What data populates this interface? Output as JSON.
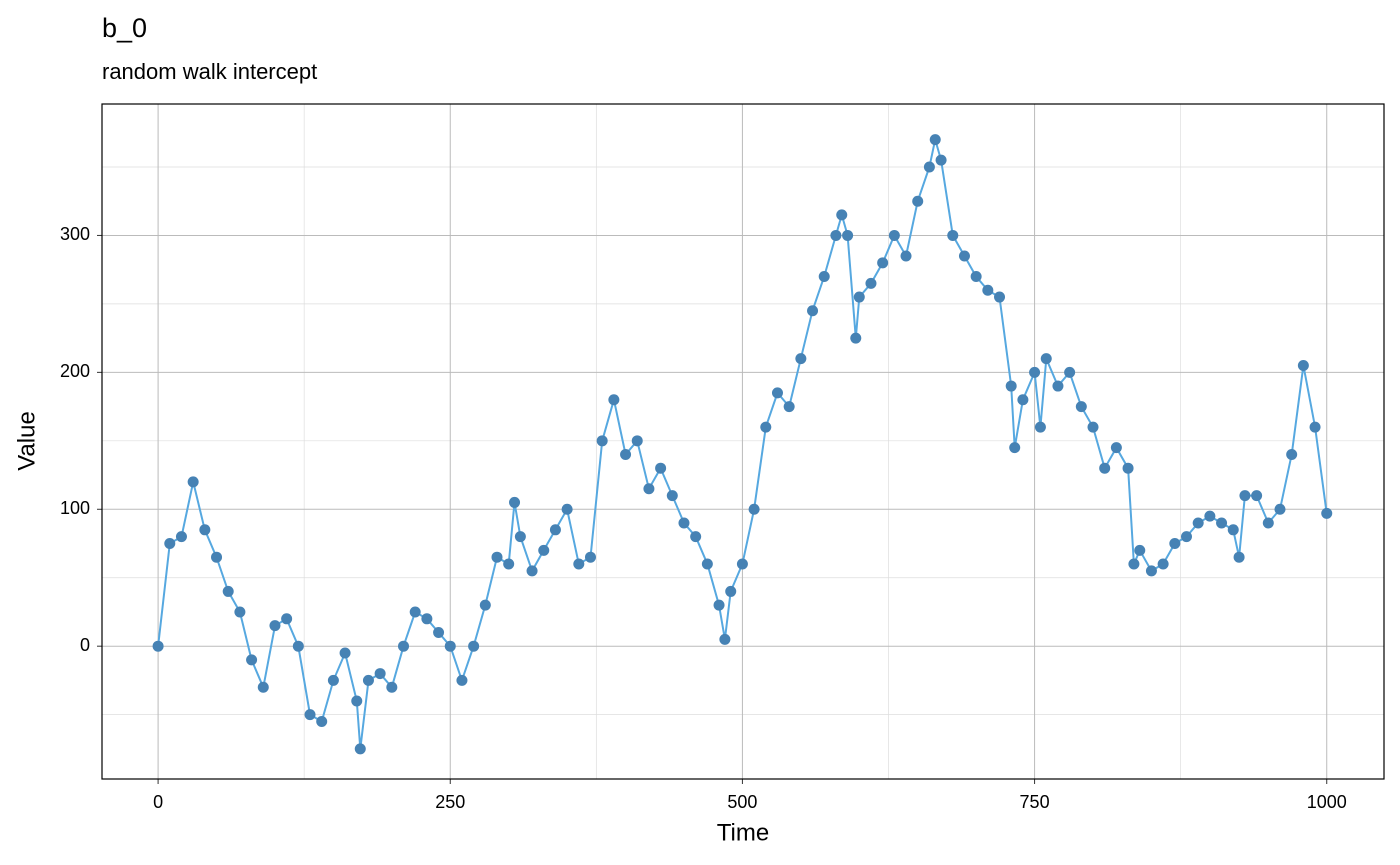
{
  "chart_data": {
    "type": "line",
    "title": "b_0",
    "subtitle": "random walk intercept",
    "x_label": "Time",
    "y_label": "Value",
    "x": [
      0,
      10,
      20,
      30,
      40,
      50,
      60,
      70,
      80,
      90,
      100,
      110,
      120,
      130,
      140,
      150,
      160,
      170,
      173,
      180,
      190,
      200,
      210,
      220,
      230,
      240,
      250,
      260,
      270,
      280,
      290,
      300,
      305,
      310,
      320,
      330,
      340,
      350,
      360,
      370,
      380,
      390,
      400,
      410,
      420,
      430,
      440,
      450,
      460,
      470,
      480,
      485,
      490,
      500,
      510,
      520,
      530,
      540,
      550,
      560,
      570,
      580,
      585,
      590,
      597,
      600,
      610,
      620,
      630,
      640,
      650,
      660,
      665,
      670,
      680,
      690,
      700,
      710,
      720,
      730,
      733,
      740,
      750,
      755,
      760,
      770,
      780,
      790,
      800,
      810,
      820,
      830,
      835,
      840,
      850,
      860,
      870,
      880,
      890,
      900,
      910,
      920,
      925,
      930,
      940,
      950,
      960,
      970,
      980,
      990,
      1000
    ],
    "series": [
      {
        "name": "b_0",
        "color": "#4682b4",
        "line_color": "#56a8e0",
        "values": [
          0,
          75,
          80,
          120,
          85,
          65,
          40,
          25,
          -10,
          -30,
          15,
          20,
          0,
          -50,
          -55,
          -25,
          -5,
          -40,
          -75,
          -25,
          -20,
          -30,
          0,
          25,
          20,
          10,
          0,
          -25,
          0,
          30,
          65,
          60,
          105,
          80,
          55,
          70,
          85,
          100,
          60,
          65,
          150,
          180,
          140,
          150,
          115,
          130,
          110,
          90,
          80,
          60,
          30,
          5,
          40,
          60,
          100,
          160,
          185,
          175,
          210,
          245,
          270,
          300,
          315,
          300,
          225,
          255,
          265,
          280,
          300,
          285,
          325,
          350,
          370,
          355,
          300,
          285,
          270,
          260,
          255,
          190,
          145,
          180,
          200,
          160,
          210,
          190,
          200,
          175,
          160,
          130,
          145,
          130,
          60,
          70,
          55,
          60,
          75,
          80,
          90,
          95,
          90,
          85,
          65,
          110,
          110,
          90,
          100,
          140,
          205,
          160,
          97
        ]
      }
    ],
    "xlim": [
      -48,
      1049
    ],
    "ylim": [
      -97,
      396
    ],
    "xticks": [
      0,
      250,
      500,
      750,
      1000
    ],
    "yticks": [
      0,
      100,
      200,
      300
    ],
    "xminor": [
      125,
      375,
      625,
      875
    ],
    "yminor": [
      -50,
      50,
      150,
      250,
      350
    ],
    "grid": true
  }
}
